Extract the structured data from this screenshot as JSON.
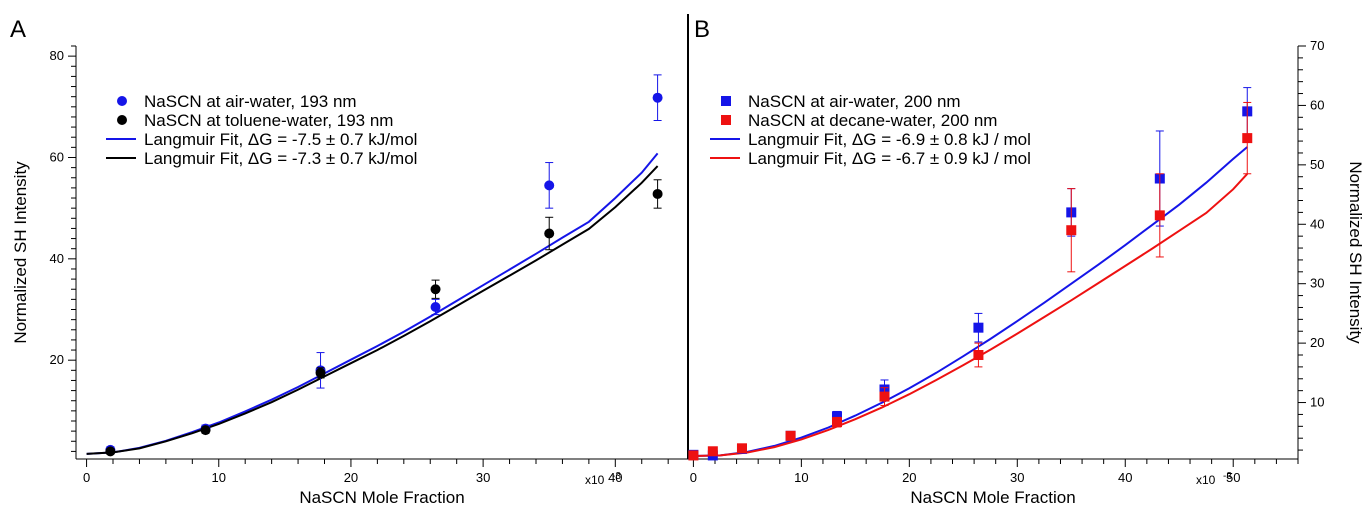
{
  "chart_data": [
    {
      "type": "scatter",
      "panel_label": "A",
      "xlabel": "NaSCN Mole Fraction",
      "x_exponent_label": "x10",
      "x_exponent_power": "-3",
      "ylabel": "Normalized SH Intensity",
      "xlim": [
        -0.8,
        45.5
      ],
      "ylim": [
        0.5,
        82
      ],
      "x_ticks": [
        0,
        10,
        20,
        30,
        40
      ],
      "x_tick_labels": [
        "0",
        "10",
        "20",
        "30",
        "40"
      ],
      "y_ticks": [
        20,
        40,
        60,
        80
      ],
      "y_tick_labels": [
        "20",
        "40",
        "60",
        "80"
      ],
      "grid": false,
      "legend_position": "top-left",
      "series": [
        {
          "name": "NaSCN at air-water, 193 nm",
          "marker": "circle",
          "color": "#1515e8",
          "x": [
            1.8,
            9.0,
            17.7,
            26.4,
            35.0,
            43.2
          ],
          "y": [
            2.3,
            6.5,
            18.0,
            30.5,
            54.5,
            71.8
          ],
          "err": [
            0.6,
            0.7,
            3.5,
            1.5,
            4.5,
            4.5
          ]
        },
        {
          "name": "NaSCN at toluene-water, 193 nm",
          "marker": "circle",
          "color": "#000000",
          "x": [
            1.8,
            9.0,
            17.7,
            26.4,
            35.0,
            43.2
          ],
          "y": [
            2.0,
            6.2,
            17.5,
            34.0,
            45.0,
            52.8
          ],
          "err": [
            0.5,
            0.6,
            1.0,
            1.8,
            3.2,
            2.8
          ]
        },
        {
          "name": "Langmuir Fit, ΔG = -7.5 ± 0.7 kJ/mol",
          "type": "line",
          "color": "#1515e8",
          "x": [
            0,
            2,
            4,
            6,
            8,
            10,
            12,
            14,
            16,
            18,
            20,
            22,
            24,
            26,
            28,
            30,
            32,
            34,
            36,
            38,
            40,
            42,
            43.2
          ],
          "y": [
            1.5,
            1.8,
            2.7,
            4.1,
            5.8,
            7.7,
            9.9,
            12.2,
            14.7,
            17.4,
            20.1,
            22.8,
            25.6,
            28.6,
            31.7,
            34.8,
            37.9,
            41.0,
            44.2,
            47.3,
            52.0,
            57.0,
            60.8
          ]
        },
        {
          "name": "Langmuir Fit, ΔG = -7.3 ± 0.7 kJ/mol",
          "type": "line",
          "color": "#000000",
          "x": [
            0,
            2,
            4,
            6,
            8,
            10,
            12,
            14,
            16,
            18,
            20,
            22,
            24,
            26,
            28,
            30,
            32,
            34,
            36,
            38,
            40,
            42,
            43.2
          ],
          "y": [
            1.5,
            1.8,
            2.6,
            4.0,
            5.6,
            7.4,
            9.5,
            11.7,
            14.2,
            16.8,
            19.4,
            22.0,
            24.8,
            27.7,
            30.7,
            33.7,
            36.7,
            39.7,
            42.8,
            45.9,
            50.2,
            55.0,
            58.3
          ]
        }
      ]
    },
    {
      "type": "scatter",
      "panel_label": "B",
      "xlabel": "NaSCN Mole Fraction",
      "x_exponent_label": "x10",
      "x_exponent_power": "-3",
      "ylabel": "Normalized SH Intensity",
      "xlim": [
        -0.5,
        56
      ],
      "ylim": [
        0.5,
        70
      ],
      "x_ticks": [
        0,
        10,
        20,
        30,
        40,
        50
      ],
      "x_tick_labels": [
        "0",
        "10",
        "20",
        "30",
        "40",
        "50"
      ],
      "y_ticks": [
        10,
        20,
        30,
        40,
        50,
        60,
        70
      ],
      "y_tick_labels": [
        "10",
        "20",
        "30",
        "40",
        "50",
        "60",
        "70"
      ],
      "y_axis_side": "right",
      "grid": false,
      "legend_position": "top-left",
      "series": [
        {
          "name": "NaSCN at air-water, 200 nm",
          "marker": "square",
          "color": "#1515e8",
          "x": [
            0,
            1.8,
            4.5,
            9.0,
            13.3,
            17.7,
            26.4,
            35.0,
            43.2,
            51.3
          ],
          "y": [
            1.2,
            1.1,
            2.2,
            4.4,
            7.7,
            12.2,
            22.6,
            42.0,
            47.7,
            59.0
          ],
          "err": [
            0.3,
            0.4,
            0.5,
            0.6,
            0.8,
            1.6,
            2.4,
            4.0,
            8.0,
            4.0
          ]
        },
        {
          "name": "NaSCN at decane-water, 200 nm",
          "marker": "square",
          "color": "#ee1111",
          "x": [
            0,
            1.8,
            4.5,
            9.0,
            13.3,
            17.7,
            26.4,
            35.0,
            43.2,
            51.3
          ],
          "y": [
            1.1,
            1.8,
            2.3,
            4.4,
            6.7,
            11.0,
            18.0,
            39.0,
            41.5,
            54.5
          ],
          "err": [
            0.3,
            0.4,
            0.5,
            0.6,
            0.8,
            1.5,
            2.0,
            7.0,
            7.0,
            6.0
          ]
        },
        {
          "name": "Langmuir Fit, ΔG = -6.9 ± 0.8 kJ / mol",
          "type": "line",
          "color": "#1515e8",
          "x": [
            0,
            2.5,
            5,
            7.5,
            10,
            12.5,
            15,
            17.5,
            20,
            22.5,
            25,
            27.5,
            30,
            32.5,
            35,
            37.5,
            40,
            42.5,
            45,
            47.5,
            50,
            51.3
          ],
          "y": [
            1.0,
            1.1,
            1.7,
            2.7,
            4.1,
            5.8,
            7.8,
            10.0,
            12.4,
            15.0,
            17.8,
            20.7,
            23.7,
            26.8,
            30.0,
            33.2,
            36.5,
            39.9,
            43.3,
            47.0,
            51.0,
            53.0
          ]
        },
        {
          "name": "Langmuir Fit, ΔG = -6.7 ± 0.9 kJ / mol",
          "type": "line",
          "color": "#ee1111",
          "x": [
            0,
            2.5,
            5,
            7.5,
            10,
            12.5,
            15,
            17.5,
            20,
            22.5,
            25,
            27.5,
            30,
            32.5,
            35,
            37.5,
            40,
            42.5,
            45,
            47.5,
            50,
            51.3
          ],
          "y": [
            1.0,
            1.1,
            1.6,
            2.5,
            3.8,
            5.4,
            7.2,
            9.2,
            11.4,
            13.8,
            16.3,
            18.9,
            21.6,
            24.4,
            27.2,
            30.1,
            33.0,
            35.9,
            38.9,
            41.9,
            45.9,
            48.5
          ]
        }
      ]
    }
  ]
}
